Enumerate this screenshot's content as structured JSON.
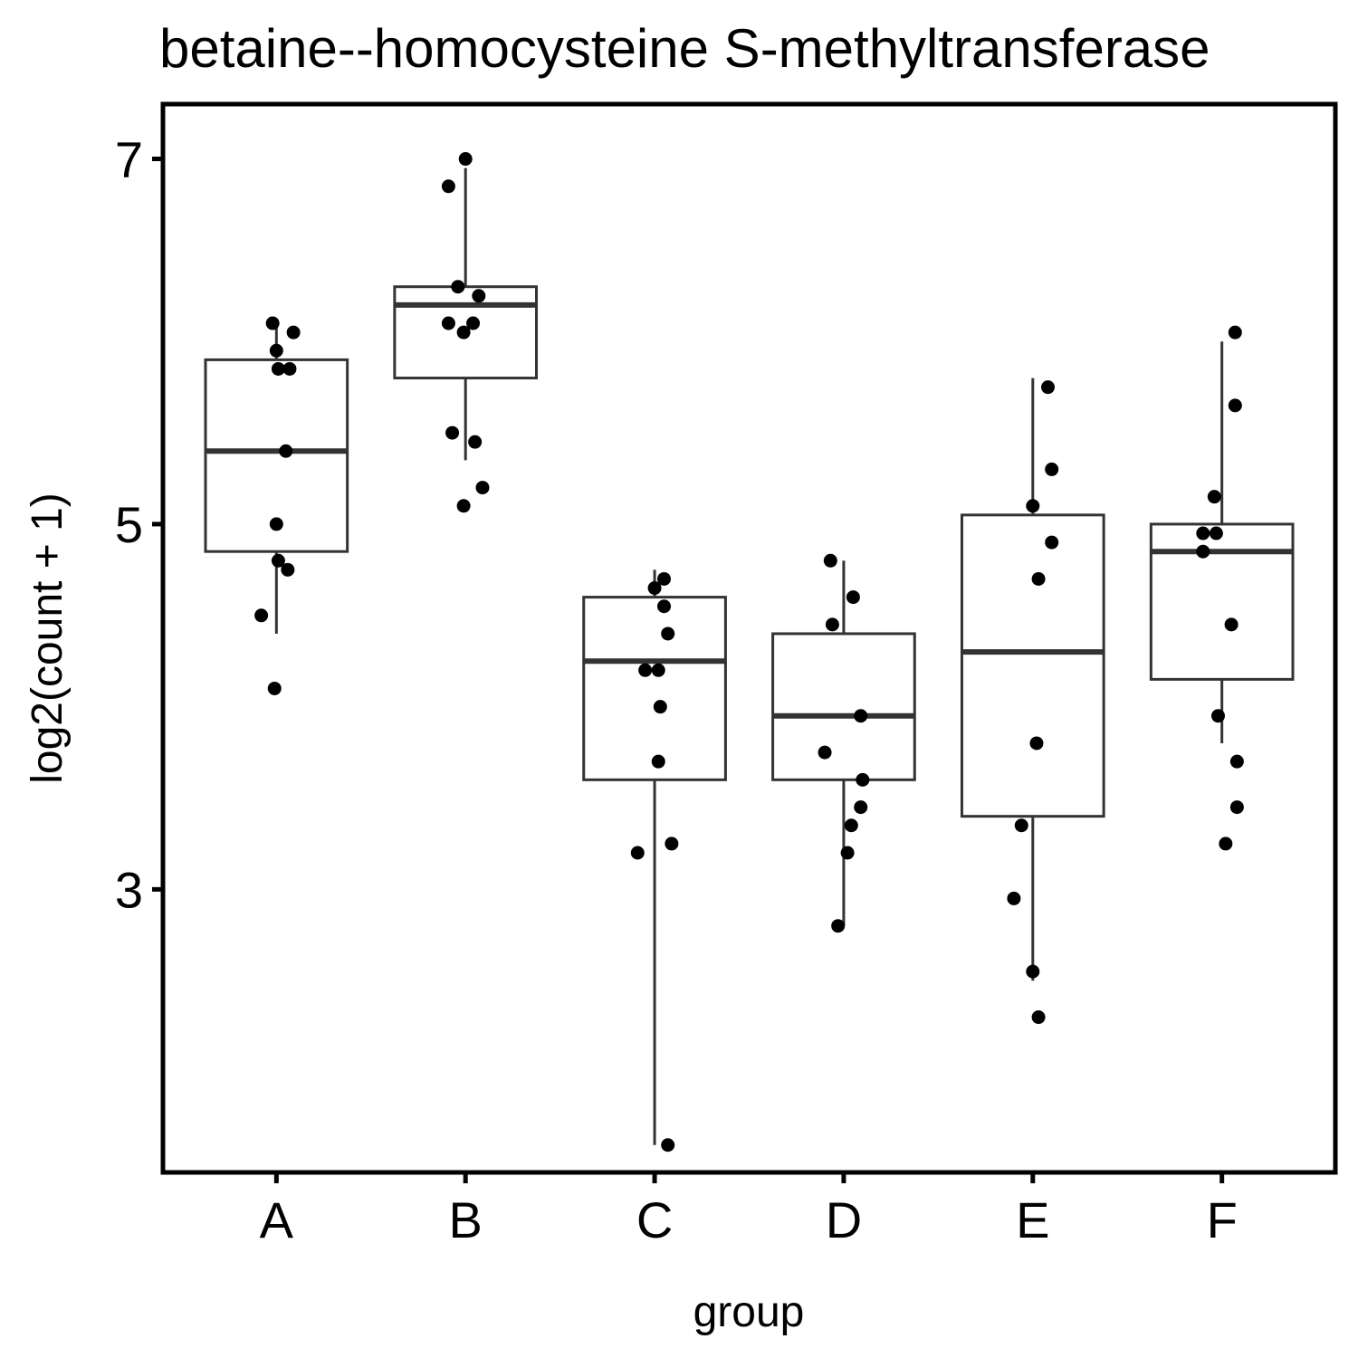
{
  "chart_data": {
    "type": "box",
    "title": "betaine--homocysteine S-methyltransferase",
    "xlabel": "group",
    "ylabel": "log2(count + 1)",
    "ylim": [
      1.45,
      7.3
    ],
    "yticks": [
      3,
      5,
      7
    ],
    "categories": [
      "A",
      "B",
      "C",
      "D",
      "E",
      "F"
    ],
    "grid": false,
    "colors": {
      "box_outline": "#333333",
      "points": "#000000",
      "frame": "#000000"
    },
    "boxes": [
      {
        "group": "A",
        "whisker_low": 4.4,
        "q1": 4.85,
        "median": 5.4,
        "q3": 5.9,
        "whisker_high": 6.1
      },
      {
        "group": "B",
        "whisker_low": 5.35,
        "q1": 5.8,
        "median": 6.2,
        "q3": 6.3,
        "whisker_high": 6.95
      },
      {
        "group": "C",
        "whisker_low": 1.6,
        "q1": 3.6,
        "median": 4.25,
        "q3": 4.6,
        "whisker_high": 4.75
      },
      {
        "group": "D",
        "whisker_low": 2.8,
        "q1": 3.6,
        "median": 3.95,
        "q3": 4.4,
        "whisker_high": 4.8
      },
      {
        "group": "E",
        "whisker_low": 2.5,
        "q1": 3.4,
        "median": 4.3,
        "q3": 5.05,
        "whisker_high": 5.8
      },
      {
        "group": "F",
        "whisker_low": 3.8,
        "q1": 4.15,
        "median": 4.85,
        "q3": 5.0,
        "whisker_high": 6.0
      }
    ],
    "points": [
      {
        "group": "A",
        "jitter": -0.02,
        "y": 6.1
      },
      {
        "group": "A",
        "jitter": 0.09,
        "y": 6.05
      },
      {
        "group": "A",
        "jitter": 0.0,
        "y": 5.95
      },
      {
        "group": "A",
        "jitter": 0.01,
        "y": 5.85
      },
      {
        "group": "A",
        "jitter": 0.07,
        "y": 5.85
      },
      {
        "group": "A",
        "jitter": 0.05,
        "y": 5.4
      },
      {
        "group": "A",
        "jitter": 0.0,
        "y": 5.0
      },
      {
        "group": "A",
        "jitter": 0.01,
        "y": 4.8
      },
      {
        "group": "A",
        "jitter": 0.06,
        "y": 4.75
      },
      {
        "group": "A",
        "jitter": -0.08,
        "y": 4.5
      },
      {
        "group": "A",
        "jitter": -0.01,
        "y": 4.1
      },
      {
        "group": "B",
        "jitter": -0.09,
        "y": 6.85
      },
      {
        "group": "B",
        "jitter": 0.0,
        "y": 7.0
      },
      {
        "group": "B",
        "jitter": -0.04,
        "y": 6.3
      },
      {
        "group": "B",
        "jitter": 0.07,
        "y": 6.25
      },
      {
        "group": "B",
        "jitter": -0.09,
        "y": 6.1
      },
      {
        "group": "B",
        "jitter": 0.04,
        "y": 6.1
      },
      {
        "group": "B",
        "jitter": -0.01,
        "y": 6.05
      },
      {
        "group": "B",
        "jitter": -0.07,
        "y": 5.5
      },
      {
        "group": "B",
        "jitter": 0.05,
        "y": 5.45
      },
      {
        "group": "B",
        "jitter": 0.09,
        "y": 5.2
      },
      {
        "group": "B",
        "jitter": -0.01,
        "y": 5.1
      },
      {
        "group": "C",
        "jitter": 0.05,
        "y": 4.7
      },
      {
        "group": "C",
        "jitter": 0.0,
        "y": 4.65
      },
      {
        "group": "C",
        "jitter": 0.05,
        "y": 4.55
      },
      {
        "group": "C",
        "jitter": 0.07,
        "y": 4.4
      },
      {
        "group": "C",
        "jitter": -0.05,
        "y": 4.2
      },
      {
        "group": "C",
        "jitter": 0.02,
        "y": 4.2
      },
      {
        "group": "C",
        "jitter": 0.03,
        "y": 4.0
      },
      {
        "group": "C",
        "jitter": 0.02,
        "y": 3.7
      },
      {
        "group": "C",
        "jitter": -0.09,
        "y": 3.2
      },
      {
        "group": "C",
        "jitter": 0.09,
        "y": 3.25
      },
      {
        "group": "C",
        "jitter": 0.07,
        "y": 1.6
      },
      {
        "group": "D",
        "jitter": -0.07,
        "y": 4.8
      },
      {
        "group": "D",
        "jitter": 0.05,
        "y": 4.6
      },
      {
        "group": "D",
        "jitter": -0.06,
        "y": 4.45
      },
      {
        "group": "D",
        "jitter": 0.09,
        "y": 3.95
      },
      {
        "group": "D",
        "jitter": -0.1,
        "y": 3.75
      },
      {
        "group": "D",
        "jitter": 0.1,
        "y": 3.6
      },
      {
        "group": "D",
        "jitter": 0.09,
        "y": 3.45
      },
      {
        "group": "D",
        "jitter": 0.04,
        "y": 3.35
      },
      {
        "group": "D",
        "jitter": 0.02,
        "y": 3.2
      },
      {
        "group": "D",
        "jitter": -0.03,
        "y": 2.8
      },
      {
        "group": "E",
        "jitter": 0.08,
        "y": 5.75
      },
      {
        "group": "E",
        "jitter": 0.1,
        "y": 5.3
      },
      {
        "group": "E",
        "jitter": 0.0,
        "y": 5.1
      },
      {
        "group": "E",
        "jitter": 0.1,
        "y": 4.9
      },
      {
        "group": "E",
        "jitter": 0.03,
        "y": 4.7
      },
      {
        "group": "E",
        "jitter": 0.02,
        "y": 3.8
      },
      {
        "group": "E",
        "jitter": -0.06,
        "y": 3.35
      },
      {
        "group": "E",
        "jitter": -0.1,
        "y": 2.95
      },
      {
        "group": "E",
        "jitter": 0.0,
        "y": 2.55
      },
      {
        "group": "E",
        "jitter": 0.03,
        "y": 2.3
      },
      {
        "group": "F",
        "jitter": 0.07,
        "y": 6.05
      },
      {
        "group": "F",
        "jitter": 0.07,
        "y": 5.65
      },
      {
        "group": "F",
        "jitter": -0.04,
        "y": 5.15
      },
      {
        "group": "F",
        "jitter": -0.1,
        "y": 4.95
      },
      {
        "group": "F",
        "jitter": -0.03,
        "y": 4.95
      },
      {
        "group": "F",
        "jitter": -0.1,
        "y": 4.85
      },
      {
        "group": "F",
        "jitter": 0.05,
        "y": 4.45
      },
      {
        "group": "F",
        "jitter": -0.02,
        "y": 3.95
      },
      {
        "group": "F",
        "jitter": 0.08,
        "y": 3.7
      },
      {
        "group": "F",
        "jitter": 0.08,
        "y": 3.45
      },
      {
        "group": "F",
        "jitter": 0.02,
        "y": 3.25
      }
    ]
  }
}
